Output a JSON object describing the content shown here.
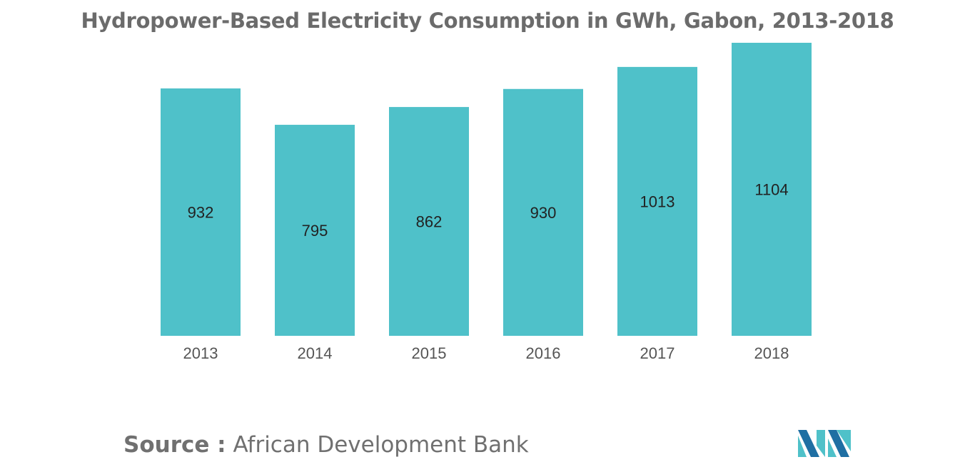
{
  "chart_data": {
    "type": "bar",
    "title": "Hydropower-Based Electricity Consumption in GWh, Gabon, 2013-2018",
    "categories": [
      "2013",
      "2014",
      "2015",
      "2016",
      "2017",
      "2018"
    ],
    "values": [
      932,
      795,
      862,
      930,
      1013,
      1104
    ],
    "data_labels": [
      "932",
      "795",
      "862",
      "930",
      "1013",
      "1104"
    ],
    "bar_color": "#4fc1c9",
    "grid": false,
    "legend": "none",
    "yaxis_visible": false
  },
  "source": {
    "label": "Source :",
    "text": "African Development Bank"
  },
  "logo": {
    "icon": "mordor-intelligence-logo",
    "colors": [
      "#1f6fa3",
      "#4fc1c9"
    ]
  }
}
